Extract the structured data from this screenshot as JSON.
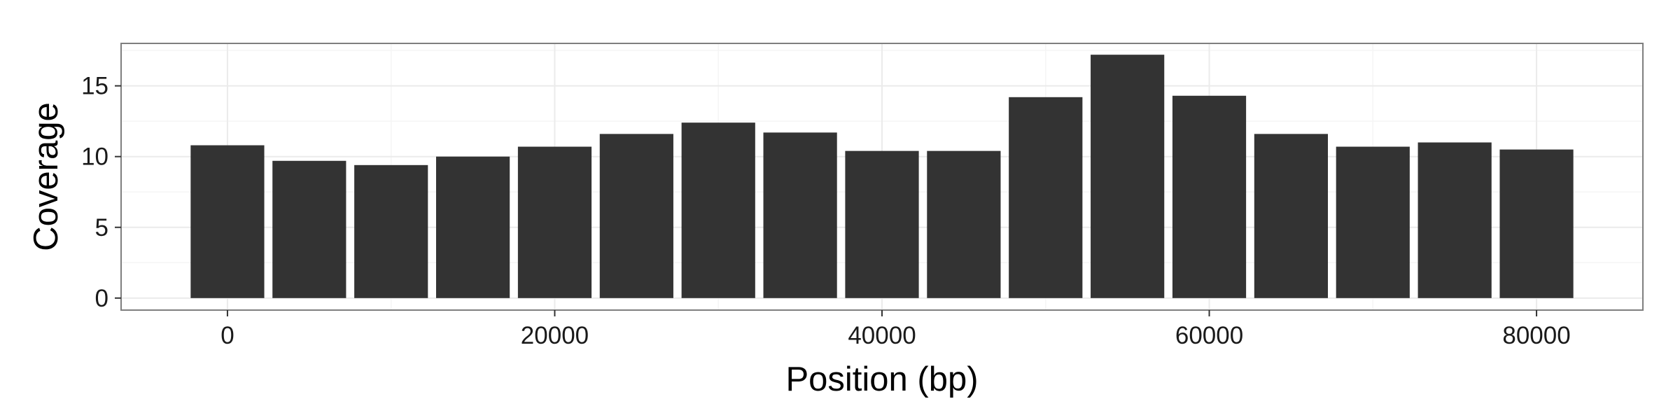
{
  "chart_data": {
    "type": "bar",
    "xlabel": "Position (bp)",
    "ylabel": "Coverage",
    "x": [
      0,
      5000,
      10000,
      15000,
      20000,
      25000,
      30000,
      35000,
      40000,
      45000,
      50000,
      55000,
      60000,
      65000,
      70000,
      75000,
      80000
    ],
    "values": [
      10.8,
      9.7,
      9.4,
      10.0,
      10.7,
      11.6,
      12.4,
      11.7,
      10.4,
      10.4,
      14.2,
      17.2,
      14.3,
      11.6,
      10.7,
      11.0,
      10.5
    ],
    "bin_width": 4500,
    "xlim": [
      -6500,
      86500
    ],
    "ylim": [
      -0.85,
      18.0
    ],
    "x_ticks": [
      0,
      20000,
      40000,
      60000,
      80000
    ],
    "x_tick_labels": [
      "0",
      "20000",
      "40000",
      "60000",
      "80000"
    ],
    "y_ticks": [
      0,
      5,
      10,
      15
    ],
    "y_tick_labels": [
      "0",
      "5",
      "10",
      "15"
    ],
    "grid": true,
    "legend": "none",
    "colors": {
      "bar": "#333333",
      "panel_border": "#7f7f7f",
      "grid_major": "#ebebeb",
      "grid_minor": "#f5f5f5",
      "tick": "#333333"
    }
  }
}
